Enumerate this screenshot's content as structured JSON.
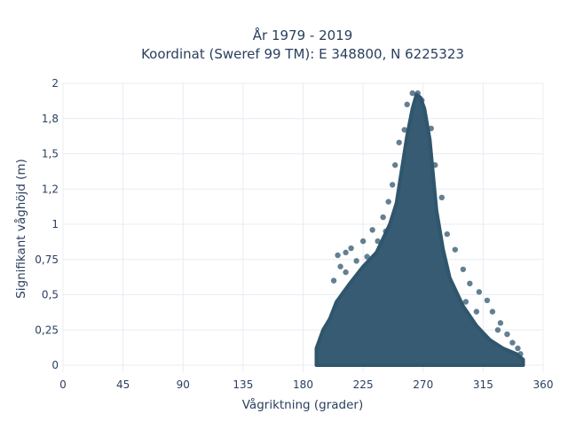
{
  "chart_data": {
    "type": "scatter",
    "title_line1": "År 1979 - 2019",
    "title_line2": "Koordinat (Sweref 99 TM): E 348800, N 6225323",
    "xlabel": "Vågriktning (grader)",
    "ylabel": "Signifikant våghöjd (m)",
    "xlim": [
      0,
      360
    ],
    "ylim": [
      -0.05,
      2.0
    ],
    "x_ticks": [
      {
        "value": 0,
        "label": "0"
      },
      {
        "value": 45,
        "label": "45"
      },
      {
        "value": 90,
        "label": "90"
      },
      {
        "value": 135,
        "label": "135"
      },
      {
        "value": 180,
        "label": "180"
      },
      {
        "value": 225,
        "label": "225"
      },
      {
        "value": 270,
        "label": "270"
      },
      {
        "value": 315,
        "label": "315"
      },
      {
        "value": 360,
        "label": "360"
      }
    ],
    "y_ticks": [
      {
        "value": 0,
        "label": "0"
      },
      {
        "value": 0.25,
        "label": "0,25"
      },
      {
        "value": 0.5,
        "label": "0,5"
      },
      {
        "value": 0.75,
        "label": "0,75"
      },
      {
        "value": 1,
        "label": "1"
      },
      {
        "value": 1.25,
        "label": "1,2"
      },
      {
        "value": 1.5,
        "label": "1,5"
      },
      {
        "value": 1.75,
        "label": "1,8"
      },
      {
        "value": 2,
        "label": "2"
      }
    ],
    "grid": true,
    "marker_color": "#2f566d",
    "grid_color": "#e8ecf2",
    "envelope": [
      [
        190,
        0.0
      ],
      [
        190,
        0.12
      ],
      [
        195,
        0.25
      ],
      [
        200,
        0.33
      ],
      [
        205,
        0.45
      ],
      [
        215,
        0.58
      ],
      [
        225,
        0.7
      ],
      [
        235,
        0.8
      ],
      [
        245,
        1.0
      ],
      [
        250,
        1.15
      ],
      [
        255,
        1.45
      ],
      [
        258,
        1.63
      ],
      [
        262,
        1.82
      ],
      [
        265,
        1.92
      ],
      [
        268,
        1.9
      ],
      [
        271,
        1.82
      ],
      [
        275,
        1.6
      ],
      [
        280,
        1.1
      ],
      [
        285,
        0.82
      ],
      [
        290,
        0.62
      ],
      [
        300,
        0.42
      ],
      [
        310,
        0.28
      ],
      [
        320,
        0.18
      ],
      [
        330,
        0.12
      ],
      [
        340,
        0.08
      ],
      [
        345,
        0.04
      ],
      [
        345,
        0.0
      ]
    ],
    "scatter_points": [
      [
        262,
        1.93
      ],
      [
        266,
        1.93
      ],
      [
        269,
        1.88
      ],
      [
        258,
        1.85
      ],
      [
        256,
        1.67
      ],
      [
        252,
        1.58
      ],
      [
        249,
        1.42
      ],
      [
        247,
        1.28
      ],
      [
        244,
        1.16
      ],
      [
        240,
        1.05
      ],
      [
        232,
        0.96
      ],
      [
        225,
        0.88
      ],
      [
        216,
        0.83
      ],
      [
        212,
        0.8
      ],
      [
        206,
        0.78
      ],
      [
        276,
        1.68
      ],
      [
        279,
        1.42
      ],
      [
        284,
        1.19
      ],
      [
        288,
        0.93
      ],
      [
        294,
        0.82
      ],
      [
        300,
        0.68
      ],
      [
        305,
        0.58
      ],
      [
        312,
        0.52
      ],
      [
        318,
        0.46
      ],
      [
        322,
        0.38
      ],
      [
        328,
        0.3
      ],
      [
        333,
        0.22
      ],
      [
        337,
        0.16
      ],
      [
        341,
        0.12
      ],
      [
        343,
        0.08
      ],
      [
        203,
        0.6
      ],
      [
        208,
        0.7
      ],
      [
        212,
        0.66
      ],
      [
        220,
        0.74
      ],
      [
        228,
        0.77
      ],
      [
        236,
        0.88
      ],
      [
        242,
        0.95
      ],
      [
        302,
        0.45
      ],
      [
        310,
        0.38
      ],
      [
        326,
        0.25
      ]
    ]
  }
}
